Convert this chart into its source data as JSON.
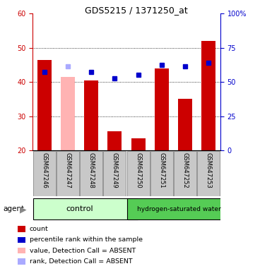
{
  "title": "GDS5215 / 1371250_at",
  "samples": [
    "GSM647246",
    "GSM647247",
    "GSM647248",
    "GSM647249",
    "GSM647250",
    "GSM647251",
    "GSM647252",
    "GSM647253"
  ],
  "bar_values": [
    46.5,
    41.5,
    40.5,
    25.5,
    23.5,
    44.0,
    35.0,
    52.0
  ],
  "bar_colors": [
    "#cc0000",
    "#ffb3b3",
    "#cc0000",
    "#cc0000",
    "#cc0000",
    "#cc0000",
    "#cc0000",
    "#cc0000"
  ],
  "dot_values": [
    43.0,
    44.5,
    43.0,
    41.0,
    42.0,
    45.0,
    44.5,
    45.5
  ],
  "dot_colors": [
    "#0000cc",
    "#aaaaff",
    "#0000cc",
    "#0000cc",
    "#0000cc",
    "#0000cc",
    "#0000cc",
    "#0000cc"
  ],
  "ylim_left": [
    20,
    60
  ],
  "ylim_right": [
    0,
    100
  ],
  "yticks_left": [
    20,
    30,
    40,
    50,
    60
  ],
  "yticks_right": [
    0,
    25,
    50,
    75,
    100
  ],
  "ytick_labels_right": [
    "0",
    "25",
    "50",
    "75",
    "100%"
  ],
  "left_axis_color": "#cc0000",
  "right_axis_color": "#0000cc",
  "grid_ticks": [
    30,
    40,
    50
  ],
  "control_color": "#ccffcc",
  "treatment_color": "#55cc55",
  "control_label": "control",
  "treatment_label": "hydrogen-saturated water",
  "agent_label": "agent",
  "legend_items": [
    {
      "color": "#cc0000",
      "label": "count"
    },
    {
      "color": "#0000cc",
      "label": "percentile rank within the sample"
    },
    {
      "color": "#ffb3b3",
      "label": "value, Detection Call = ABSENT"
    },
    {
      "color": "#aaaaff",
      "label": "rank, Detection Call = ABSENT"
    }
  ]
}
